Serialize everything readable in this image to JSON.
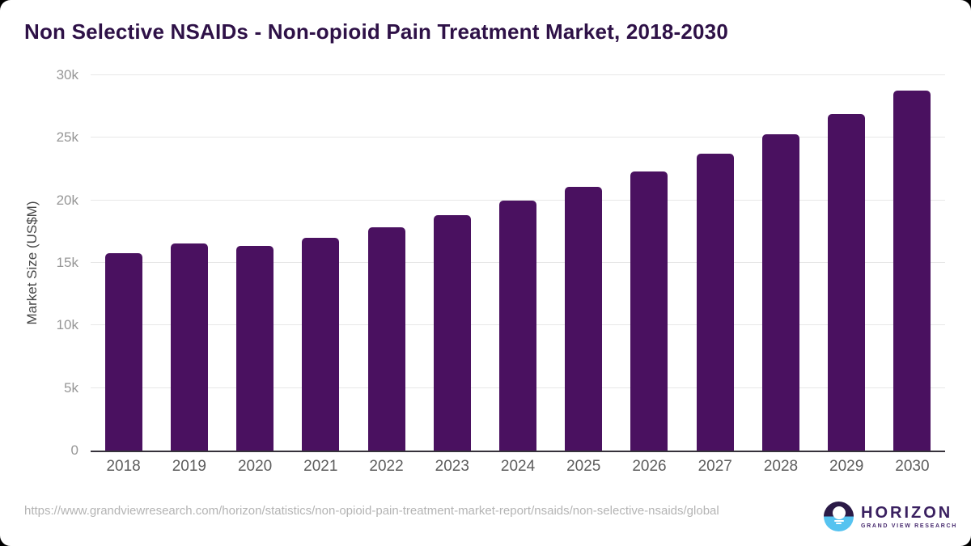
{
  "title": "Non Selective NSAIDs - Non-opioid Pain Treatment Market, 2018-2030",
  "chart_data": {
    "type": "bar",
    "categories": [
      "2018",
      "2019",
      "2020",
      "2021",
      "2022",
      "2023",
      "2024",
      "2025",
      "2026",
      "2027",
      "2028",
      "2029",
      "2030"
    ],
    "values": [
      15800,
      16550,
      16350,
      17000,
      17850,
      18800,
      19950,
      21050,
      22300,
      23700,
      25250,
      26900,
      28800
    ],
    "title": "Non Selective NSAIDs - Non-opioid Pain Treatment Market, 2018-2030",
    "xlabel": "",
    "ylabel": "Market Size (US$M)",
    "ylim": [
      0,
      30000
    ],
    "ytick_labels": [
      "0",
      "5k",
      "10k",
      "15k",
      "20k",
      "25k",
      "30k"
    ],
    "grid": true,
    "legend": false,
    "bar_color": "#4a1160"
  },
  "footer": {
    "source_url": "https://www.grandviewresearch.com/horizon/statistics/non-opioid-pain-treatment-market-report/nsaids/non-selective-nsaids/global",
    "logo": {
      "name": "HORIZON",
      "subtitle": "GRAND VIEW RESEARCH",
      "mark_icon": "sunrise-over-water-icon"
    }
  },
  "colors": {
    "bar": "#4a1160",
    "title_text": "#2e1147",
    "axis_line": "#36323b",
    "gridline": "#e7e7e7",
    "tick_label": "#969696",
    "x_label": "#5d5d5d",
    "url_text": "#b4b4b4",
    "logo_purple": "#2b1a47",
    "logo_blue": "#56c3f0"
  }
}
